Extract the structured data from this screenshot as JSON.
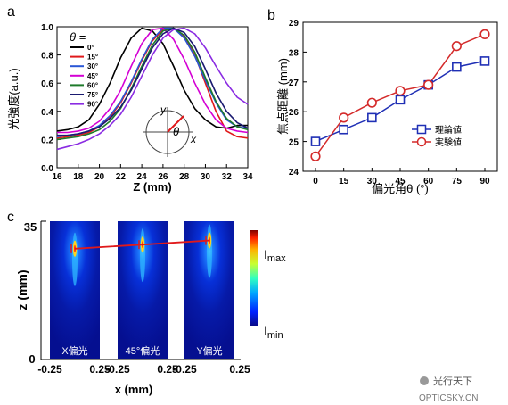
{
  "panels": {
    "a": {
      "label": "a"
    },
    "b": {
      "label": "b"
    },
    "c": {
      "label": "c"
    }
  },
  "watermark": {
    "text": "光行天下",
    "url": "OPTICSKY.CN"
  },
  "chart_data": [
    {
      "type": "line",
      "panel": "a",
      "ylabel": "光強度(a.u.)",
      "xlabel": "Z (mm)",
      "xlim": [
        16,
        34
      ],
      "ylim": [
        0.0,
        1.0
      ],
      "xticks": [
        "16",
        "18",
        "20",
        "22",
        "24",
        "26",
        "28",
        "30",
        "32",
        "34"
      ],
      "yticks": [
        "0.0",
        "0.2",
        "0.4",
        "0.6",
        "0.8",
        "1.0"
      ],
      "legend_title": "θ =",
      "legend_position": "top-right",
      "inset_labels": {
        "y": "y",
        "x": "x",
        "theta": "θ"
      },
      "series": [
        {
          "name": "0°",
          "color": "#000000",
          "x": [
            16,
            17,
            18,
            19,
            20,
            21,
            22,
            23,
            24,
            25,
            26,
            27,
            28,
            29,
            30,
            31,
            32,
            33,
            34
          ],
          "y": [
            0.26,
            0.27,
            0.29,
            0.34,
            0.45,
            0.6,
            0.78,
            0.92,
            0.99,
            0.97,
            0.88,
            0.72,
            0.55,
            0.42,
            0.34,
            0.29,
            0.28,
            0.3,
            0.3
          ]
        },
        {
          "name": "15°",
          "color": "#e0191b",
          "x": [
            16,
            17,
            18,
            19,
            20,
            21,
            22,
            23,
            24,
            25,
            26,
            27,
            28,
            29,
            30,
            31,
            32,
            33,
            34
          ],
          "y": [
            0.21,
            0.22,
            0.23,
            0.25,
            0.29,
            0.36,
            0.46,
            0.6,
            0.76,
            0.9,
            0.98,
            0.99,
            0.93,
            0.8,
            0.6,
            0.4,
            0.26,
            0.22,
            0.21
          ]
        },
        {
          "name": "30°",
          "color": "#2a56d6",
          "x": [
            16,
            17,
            18,
            19,
            20,
            21,
            22,
            23,
            24,
            25,
            26,
            27,
            28,
            29,
            30,
            31,
            32,
            33,
            34
          ],
          "y": [
            0.22,
            0.23,
            0.24,
            0.26,
            0.3,
            0.37,
            0.47,
            0.61,
            0.77,
            0.91,
            0.99,
            0.99,
            0.92,
            0.79,
            0.62,
            0.46,
            0.34,
            0.29,
            0.28
          ]
        },
        {
          "name": "45°",
          "color": "#d400d4",
          "x": [
            16,
            17,
            18,
            19,
            20,
            21,
            22,
            23,
            24,
            25,
            26,
            27,
            28,
            29,
            30,
            31,
            32,
            33,
            34
          ],
          "y": [
            0.25,
            0.25,
            0.26,
            0.28,
            0.33,
            0.42,
            0.55,
            0.72,
            0.88,
            0.98,
            0.99,
            0.91,
            0.77,
            0.6,
            0.45,
            0.34,
            0.28,
            0.26,
            0.25
          ]
        },
        {
          "name": "60°",
          "color": "#1e7a2a",
          "x": [
            16,
            17,
            18,
            19,
            20,
            21,
            22,
            23,
            24,
            25,
            26,
            27,
            28,
            29,
            30,
            31,
            32,
            33,
            34
          ],
          "y": [
            0.2,
            0.21,
            0.22,
            0.24,
            0.27,
            0.33,
            0.42,
            0.56,
            0.72,
            0.87,
            0.97,
            0.99,
            0.94,
            0.82,
            0.64,
            0.47,
            0.35,
            0.29,
            0.27
          ]
        },
        {
          "name": "75°",
          "color": "#1a1a70",
          "x": [
            16,
            17,
            18,
            19,
            20,
            21,
            22,
            23,
            24,
            25,
            26,
            27,
            28,
            29,
            30,
            31,
            32,
            33,
            34
          ],
          "y": [
            0.23,
            0.23,
            0.24,
            0.26,
            0.29,
            0.35,
            0.43,
            0.55,
            0.7,
            0.85,
            0.95,
            0.99,
            0.96,
            0.86,
            0.7,
            0.53,
            0.4,
            0.32,
            0.28
          ]
        },
        {
          "name": "90°",
          "color": "#8a2be2",
          "x": [
            16,
            17,
            18,
            19,
            20,
            21,
            22,
            23,
            24,
            25,
            26,
            27,
            28,
            29,
            30,
            31,
            32,
            33,
            34
          ],
          "y": [
            0.13,
            0.15,
            0.17,
            0.2,
            0.24,
            0.3,
            0.38,
            0.5,
            0.65,
            0.8,
            0.92,
            0.98,
            0.99,
            0.95,
            0.85,
            0.72,
            0.6,
            0.5,
            0.45
          ]
        }
      ]
    },
    {
      "type": "line",
      "panel": "b",
      "ylabel": "焦点距離 (mm)",
      "xlabel": "偏光角θ (°)",
      "categories": [
        "0",
        "15",
        "30",
        "45",
        "60",
        "75",
        "90"
      ],
      "ylim": [
        24,
        29
      ],
      "yticks": [
        "24",
        "25",
        "26",
        "27",
        "28",
        "29"
      ],
      "legend_position": "center-right",
      "series": [
        {
          "name": "理論値",
          "color": "#1f2fb5",
          "marker": "square",
          "values": [
            25.0,
            25.4,
            25.8,
            26.4,
            26.9,
            27.5,
            27.7
          ]
        },
        {
          "name": "実験値",
          "color": "#d42a2a",
          "marker": "circle",
          "values": [
            24.5,
            25.8,
            26.3,
            26.7,
            26.9,
            28.2,
            28.6
          ]
        }
      ]
    },
    {
      "type": "heatmap",
      "panel": "c",
      "ylabel": "z (mm)",
      "xlabel": "x (mm)",
      "yticks": [
        "0",
        "35"
      ],
      "xticks": [
        "-0.25",
        "0.25",
        "-0.25",
        "0.25",
        "-0.25",
        "0.25"
      ],
      "panel_labels": [
        "X偏光",
        "45°偏光",
        "Y偏光"
      ],
      "colorbar": {
        "max_label": "I",
        "max_sub": "max",
        "min_label": "I",
        "min_sub": "min"
      },
      "focus_positions_fraction_from_top": [
        0.2,
        0.17,
        0.14
      ]
    }
  ]
}
